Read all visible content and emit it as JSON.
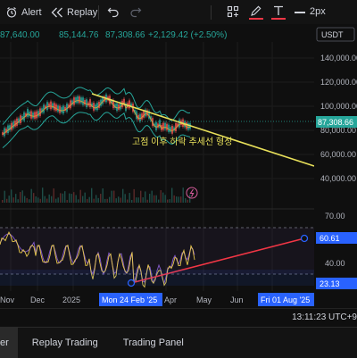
{
  "toolbar": {
    "alert_label": "Alert",
    "replay_label": "Replay",
    "line_width_label": "2px"
  },
  "legend": {
    "values": [
      "87,640.00",
      "85,144.76",
      "87,308.66",
      "+2,129.42 (+2.50%)"
    ]
  },
  "currency_label": "USDT",
  "price_axis": [
    "140,000.00",
    "120,000.00",
    "100,000.00",
    "80,000.00",
    "60,000.00",
    "40,000.00"
  ],
  "current_price": "87,308.66",
  "annotation_text": "고점 이후 하락 추세선 형성",
  "rsi_axis": [
    "70.00",
    "40.00"
  ],
  "rsi_badges": {
    "upper": "60.61",
    "lower": "23.13"
  },
  "time_axis": [
    "Nov",
    "Dec",
    "2025",
    "Apr",
    "May",
    "Jun"
  ],
  "time_badges": {
    "start": "Mon 24 Feb '25",
    "end": "Fri 01 Aug '25"
  },
  "status_time": "13:11:23 UTC+9",
  "bottom_tabs": {
    "active": "er",
    "replay": "Replay Trading",
    "panel": "Trading Panel"
  },
  "colors": {
    "up": "#26a69a",
    "down": "#ef5350",
    "trendline": "#e8e05a",
    "rsi_trend": "#f23645",
    "accent": "#2962ff"
  }
}
